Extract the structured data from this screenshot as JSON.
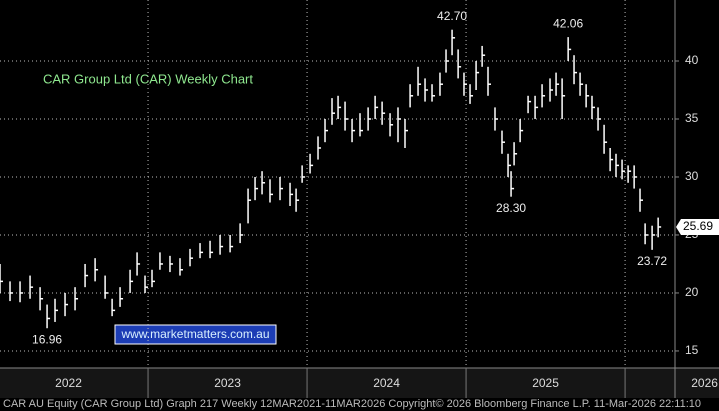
{
  "chart_data": {
    "type": "ohlc",
    "title": "CAR Group Ltd (CAR) Weekly Chart",
    "watermark": "www.marketmatters.com.au",
    "footer": "CAR AU Equity (CAR Group Ltd) Graph 217 Weekly 12MAR2021-11MAR2026 Copyright© 2026 Bloomberg Finance L.P.  11-Mar-2026 22:11:10",
    "x": [
      2022.069,
      2022.132,
      2022.195,
      2022.258,
      2022.321,
      2022.365,
      2022.415,
      2022.478,
      2022.541,
      2022.604,
      2022.667,
      2022.73,
      2022.774,
      2022.824,
      2022.887,
      2022.931,
      2022.981,
      2023.025,
      2023.075,
      2023.138,
      2023.201,
      2023.264,
      2023.327,
      2023.39,
      2023.453,
      2023.516,
      2023.579,
      2023.629,
      2023.673,
      2023.717,
      2023.767,
      2023.83,
      2023.893,
      2023.931,
      2023.969,
      2024.019,
      2024.069,
      2024.113,
      2024.157,
      2024.195,
      2024.239,
      2024.283,
      2024.333,
      2024.384,
      2024.428,
      2024.472,
      2024.522,
      2024.572,
      2024.616,
      2024.648,
      2024.698,
      2024.742,
      2024.786,
      2024.836,
      2024.874,
      2024.912,
      2024.95,
      2024.987,
      2025.025,
      2025.063,
      2025.101,
      2025.138,
      2025.182,
      2025.226,
      2025.264,
      2025.283,
      2025.302,
      2025.34,
      2025.39,
      2025.434,
      2025.478,
      2025.528,
      2025.566,
      2025.604,
      2025.642,
      2025.679,
      2025.717,
      2025.755,
      2025.792,
      2025.83,
      2025.868,
      2025.906,
      2025.943,
      2025.981,
      2026.019,
      2026.057,
      2026.094,
      2026.126,
      2026.17,
      2026.208
    ],
    "high": [
      22.5,
      21,
      21,
      21.5,
      20.5,
      19,
      19.5,
      20,
      20.5,
      22.5,
      23,
      21.5,
      19.5,
      20.5,
      22,
      23.5,
      21.5,
      22,
      23.5,
      23.2,
      23,
      23.8,
      24.3,
      24.5,
      25,
      25,
      26,
      29,
      30,
      30.5,
      29.8,
      30,
      29.5,
      29,
      31,
      32,
      33.5,
      35,
      36.8,
      37,
      36.5,
      35,
      35.5,
      36,
      37,
      36.5,
      35.5,
      36,
      35,
      38,
      39.5,
      38.5,
      38,
      39,
      41,
      42.7,
      41,
      39,
      38,
      40,
      41.3,
      39.5,
      36,
      34,
      32,
      30.5,
      33,
      35,
      37,
      37,
      38,
      38.5,
      39,
      38.5,
      42.06,
      40.5,
      39,
      38,
      37,
      36,
      34.5,
      32.5,
      32,
      31.5,
      31,
      31,
      29,
      26,
      25.8,
      26.5
    ],
    "low": [
      20,
      19.3,
      19.2,
      19.5,
      18.5,
      16.96,
      17.5,
      18,
      18.5,
      20.5,
      21,
      19.5,
      18,
      18.8,
      20,
      21.5,
      20,
      20.5,
      22,
      21.8,
      21.5,
      22.3,
      23,
      23,
      23.3,
      23.5,
      24.3,
      26,
      28,
      28.5,
      27.8,
      28,
      27.5,
      27,
      29.5,
      30.3,
      31.5,
      33,
      34.5,
      35,
      34,
      33,
      33.5,
      34,
      35,
      34.5,
      33.5,
      33,
      32.5,
      36,
      37,
      36.5,
      36.5,
      37,
      39,
      40.5,
      38.5,
      37,
      36.3,
      37.5,
      39.5,
      37,
      34,
      32,
      30,
      28.3,
      31,
      33,
      35.5,
      35,
      36,
      36.5,
      37,
      35,
      40,
      38,
      37,
      36,
      35,
      34,
      32,
      30.5,
      30,
      29.8,
      29.5,
      29,
      27,
      24.2,
      23.72,
      24.8
    ],
    "close": [
      21,
      20,
      20,
      20.5,
      19.5,
      17.8,
      18.5,
      19,
      19.5,
      21.5,
      22,
      20,
      18.5,
      19.5,
      21,
      22.5,
      20.5,
      21,
      22.5,
      22.5,
      22,
      23,
      23.5,
      23.5,
      24,
      24,
      25,
      28,
      29,
      29.5,
      28.5,
      29,
      28.5,
      28,
      30,
      31,
      32.5,
      34,
      35.5,
      36,
      35,
      34,
      34,
      35,
      36,
      35.5,
      34.5,
      35,
      34,
      37,
      38,
      37.5,
      37,
      38,
      40,
      42,
      39.5,
      38,
      37,
      39,
      40.5,
      38,
      35,
      33,
      31,
      29,
      32,
      34,
      36.5,
      36,
      37,
      37.5,
      38,
      37,
      41,
      39,
      38,
      37,
      36,
      35,
      33,
      31.5,
      31,
      30.5,
      30.5,
      30,
      28,
      25,
      25,
      25.69
    ],
    "color": "#ffffff",
    "xlim": [
      2022.069,
      2026.314
    ],
    "xticks": [
      2023,
      2024,
      2025,
      2026
    ],
    "year_labels": [
      "2022",
      "2023",
      "2024",
      "2025",
      "2026"
    ],
    "ylim": [
      13.53,
      45.26
    ],
    "yticks": [
      15,
      20,
      25,
      30,
      35,
      40
    ],
    "grid": true,
    "last_price": {
      "value": 25.69,
      "label": "25.69"
    },
    "annotations": [
      {
        "label": "42.70",
        "value": 42.7,
        "x": 2024.912,
        "position": "above"
      },
      {
        "label": "28.30",
        "value": 28.3,
        "x": 2025.283,
        "position": "below"
      },
      {
        "label": "42.06",
        "value": 42.06,
        "x": 2025.642,
        "position": "above"
      },
      {
        "label": "16.96",
        "value": 16.96,
        "x": 2022.365,
        "position": "below"
      },
      {
        "label": "23.72",
        "value": 23.72,
        "x": 2026.17,
        "position": "below"
      }
    ]
  }
}
